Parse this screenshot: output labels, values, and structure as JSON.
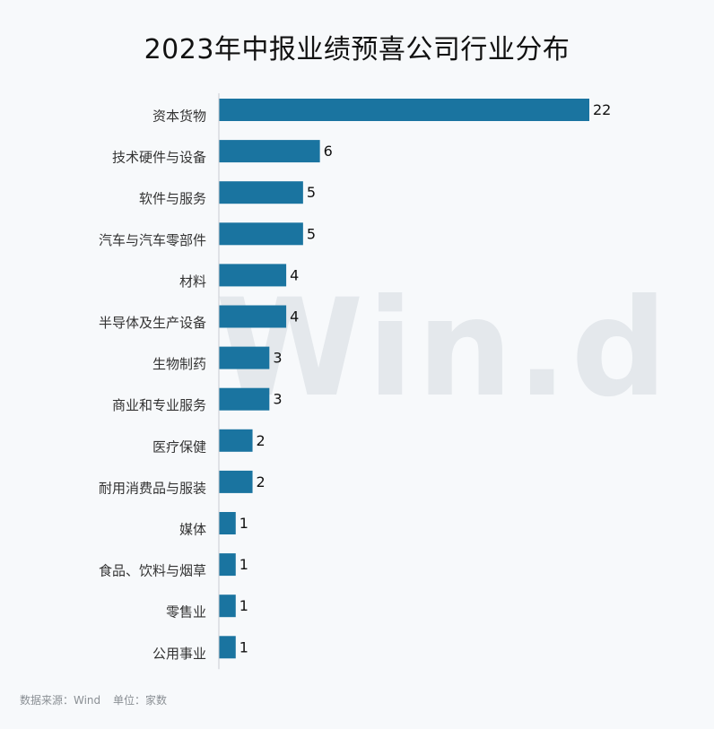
{
  "chart_data": {
    "type": "bar",
    "orientation": "horizontal",
    "title": "2023年中报业绩预喜公司行业分布",
    "categories": [
      "资本货物",
      "技术硬件与设备",
      "软件与服务",
      "汽车与汽车零部件",
      "材料",
      "半导体及生产设备",
      "生物制药",
      "商业和专业服务",
      "医疗保健",
      "耐用消费品与服装",
      "媒体",
      "食品、饮料与烟草",
      "零售业",
      "公用事业"
    ],
    "values": [
      22,
      6,
      5,
      5,
      4,
      4,
      3,
      3,
      2,
      2,
      1,
      1,
      1,
      1
    ],
    "xlim": [
      0,
      22
    ],
    "grid": false,
    "legend": "none",
    "bar_color": "#1a74a0"
  },
  "watermark": "Win.d",
  "footer": {
    "source": "数据来源：Wind",
    "unit": "单位：家数"
  }
}
